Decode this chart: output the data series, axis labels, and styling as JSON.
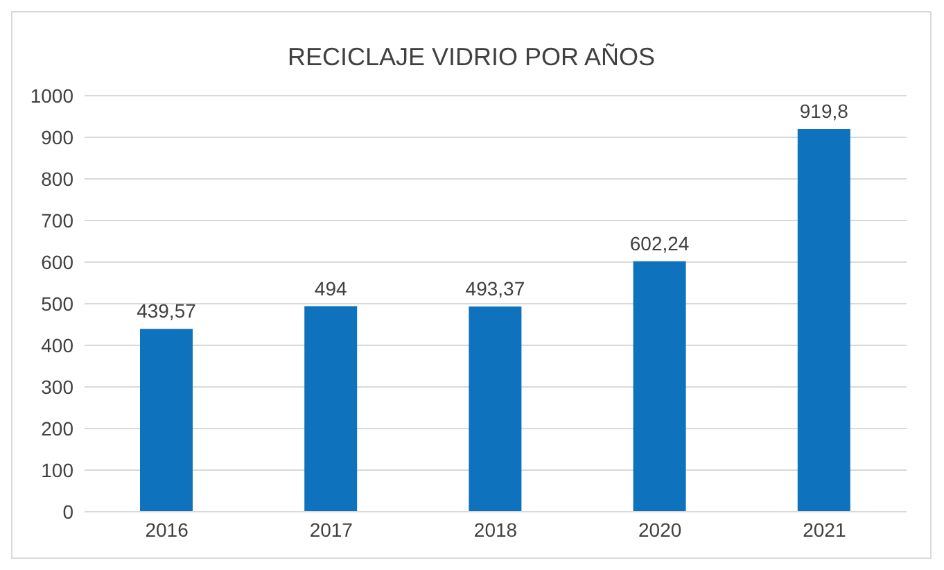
{
  "chart_data": {
    "type": "bar",
    "title": "RECICLAJE VIDRIO POR AÑOS",
    "categories": [
      "2016",
      "2017",
      "2018",
      "2020",
      "2021"
    ],
    "values": [
      439.57,
      494,
      493.37,
      602.24,
      919.8
    ],
    "value_labels": [
      "439,57",
      "494",
      "493,37",
      "602,24",
      "919,8"
    ],
    "color": "#0e72bd",
    "ylim": [
      0,
      1000
    ],
    "yticks": [
      0,
      100,
      200,
      300,
      400,
      500,
      600,
      700,
      800,
      900,
      1000
    ],
    "grid": "y"
  }
}
